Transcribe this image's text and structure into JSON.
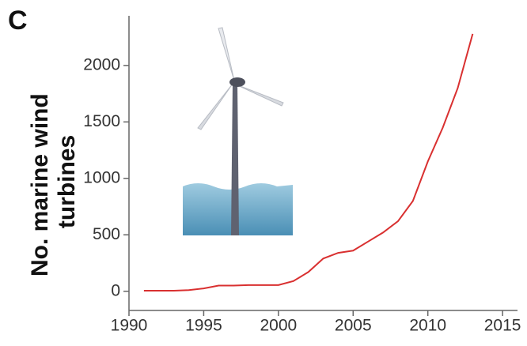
{
  "chart_data": {
    "type": "line",
    "panel_label": "C",
    "ylabel_lines": [
      "No. marine wind",
      "turbines"
    ],
    "x": [
      1991,
      1992,
      1993,
      1994,
      1995,
      1996,
      1997,
      1998,
      1999,
      2000,
      2001,
      2002,
      2003,
      2004,
      2005,
      2006,
      2007,
      2008,
      2009,
      2010,
      2011,
      2012,
      2013
    ],
    "series": [
      {
        "name": "Marine wind turbines",
        "color": "#d93030",
        "values": [
          5,
          5,
          5,
          10,
          25,
          50,
          50,
          55,
          55,
          55,
          90,
          170,
          290,
          340,
          360,
          440,
          520,
          620,
          800,
          1150,
          1450,
          1800,
          2280
        ]
      }
    ],
    "xlim": [
      1990,
      2016
    ],
    "xticks": [
      1990,
      1995,
      2000,
      2005,
      2010,
      2015
    ],
    "ylim": [
      -170,
      2440
    ],
    "yticks": [
      0,
      500,
      1000,
      1500,
      2000
    ]
  }
}
